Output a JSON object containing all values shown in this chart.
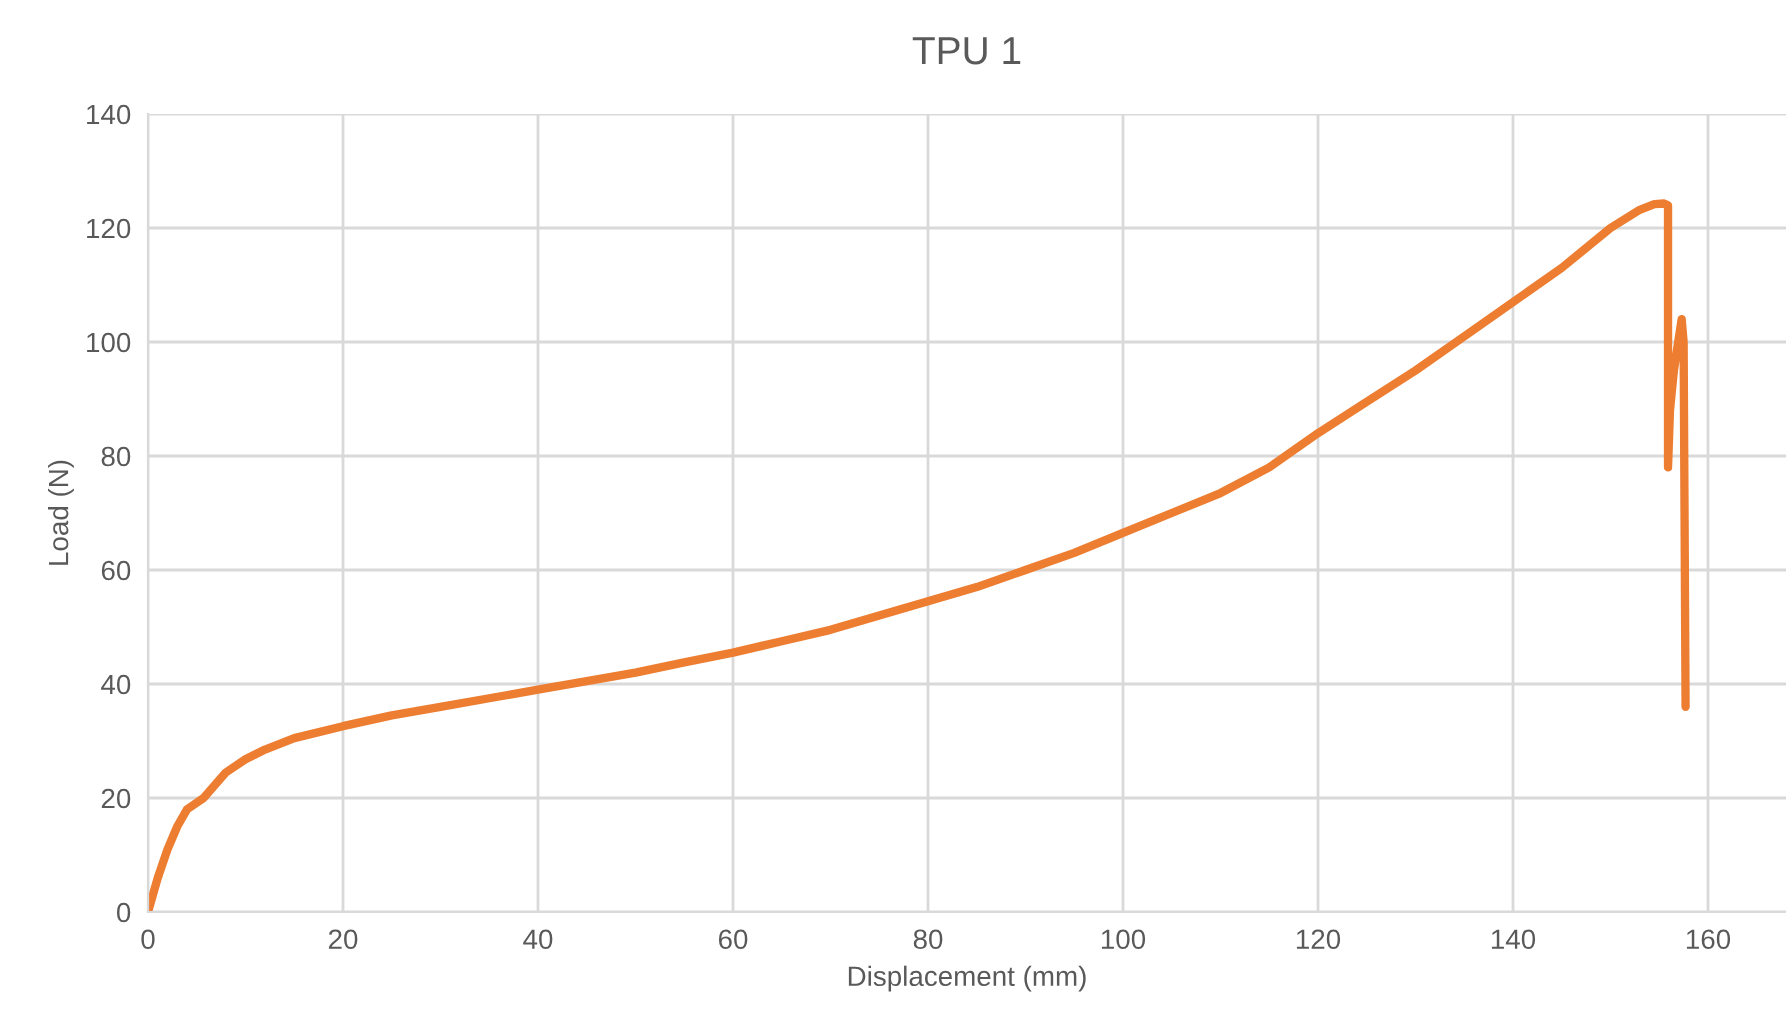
{
  "chart_data": {
    "type": "line",
    "title": "TPU 1",
    "xlabel": "Displacement (mm)",
    "ylabel": "Load (N)",
    "xlim": [
      0,
      168
    ],
    "ylim": [
      0,
      140
    ],
    "xticks": [
      0,
      20,
      40,
      60,
      80,
      100,
      120,
      140,
      160
    ],
    "yticks": [
      0,
      20,
      40,
      60,
      80,
      100,
      120,
      140
    ],
    "grid": true,
    "legend": false,
    "series": [
      {
        "color": "#ed7d31",
        "x": [
          0,
          1,
          2,
          3,
          4,
          5.7,
          8,
          10,
          12,
          15,
          20,
          25,
          30,
          35,
          40,
          45,
          50,
          55,
          60,
          65,
          70,
          75,
          80,
          85,
          90,
          95,
          100,
          105,
          110,
          115,
          120,
          125,
          130,
          135,
          140,
          145,
          150,
          153,
          154.5,
          155.5,
          155.9,
          155.9,
          156.1,
          156.5,
          157.3,
          157.5,
          157.7
        ],
        "values": [
          0,
          6,
          11,
          15,
          18,
          20,
          24.5,
          26.8,
          28.5,
          30.5,
          32.6,
          34.5,
          36,
          37.5,
          39,
          40.5,
          42,
          43.8,
          45.5,
          47.5,
          49.5,
          52,
          54.5,
          57,
          60,
          63,
          66.5,
          70,
          73.5,
          78,
          84,
          89.5,
          95,
          101,
          107,
          113,
          120,
          123.2,
          124.2,
          124.3,
          124,
          78,
          88,
          95,
          104,
          100,
          36
        ]
      }
    ]
  }
}
